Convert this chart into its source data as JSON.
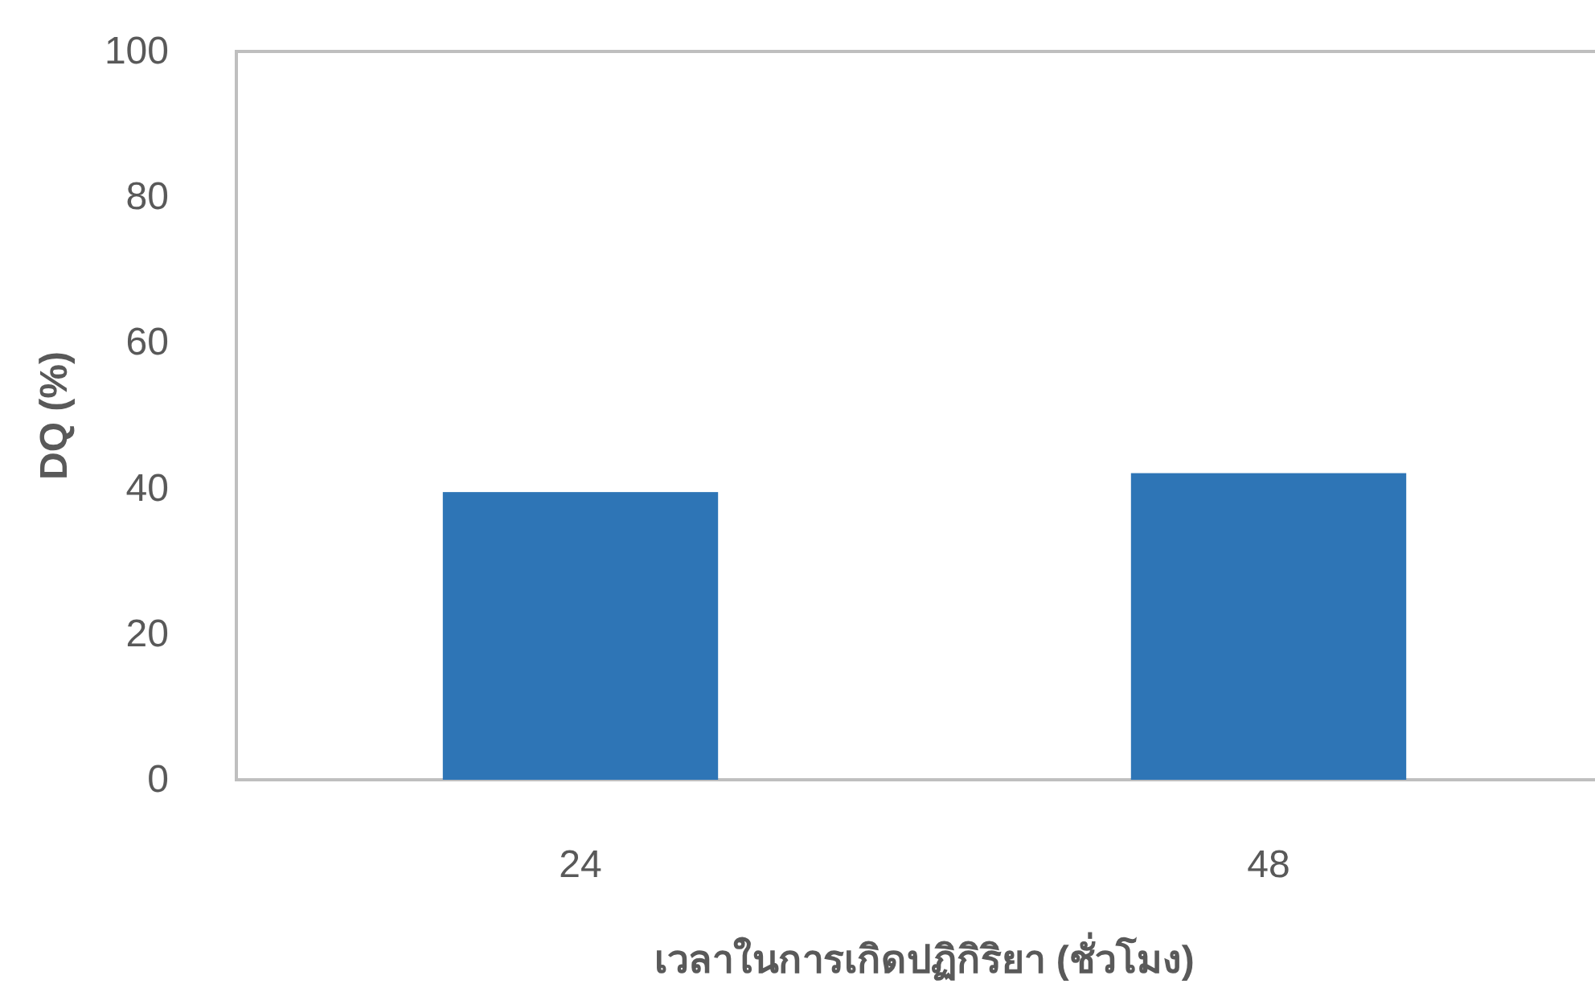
{
  "chart_data": {
    "type": "bar",
    "xlabel": "เวลาในการเกิดปฏิกิริยา (ชั่วโมง)",
    "ylabel": "DQ (%)",
    "categories": [
      "24",
      "48"
    ],
    "values": [
      39.5,
      42.1
    ],
    "color": "#2e75b6",
    "ylim": [
      0,
      100
    ],
    "yticks": [
      0,
      20,
      40,
      60,
      80,
      100
    ],
    "grid": false
  }
}
